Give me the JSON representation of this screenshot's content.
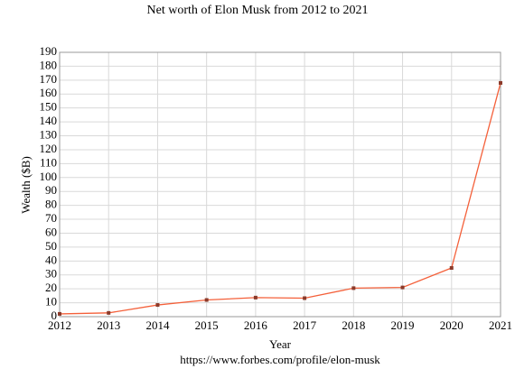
{
  "chart_data": {
    "type": "line",
    "title": "Net worth of Elon Musk from 2012 to 2021",
    "x_label": "Year",
    "y_label": "Wealth ($B)",
    "caption": "https://www.forbes.com/profile/elon-musk",
    "x": [
      2012,
      2013,
      2014,
      2015,
      2016,
      2017,
      2018,
      2019,
      2020,
      2021
    ],
    "series": [
      {
        "name": "Net worth",
        "color": "#f4603a",
        "marker_color": "#8b3a2a",
        "values": [
          2,
          2.7,
          8.4,
          12,
          13.7,
          13.3,
          20.5,
          21,
          35,
          168
        ]
      }
    ],
    "xlim": [
      2012,
      2021
    ],
    "xticks": [
      2012,
      2013,
      2014,
      2015,
      2016,
      2017,
      2018,
      2019,
      2020,
      2021
    ],
    "ylim": [
      0,
      190
    ],
    "yticks": [
      0,
      10,
      20,
      30,
      40,
      50,
      60,
      70,
      80,
      90,
      100,
      110,
      120,
      130,
      140,
      150,
      160,
      170,
      180,
      190
    ],
    "grid": true
  }
}
